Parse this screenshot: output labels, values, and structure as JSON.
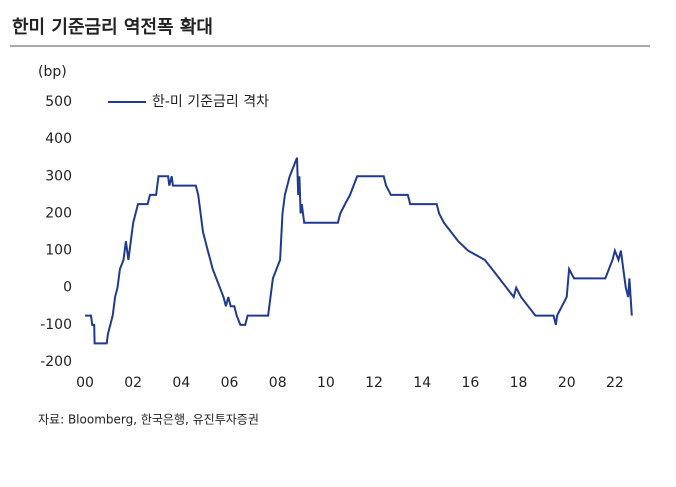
{
  "chart_data": {
    "type": "line",
    "title": "한미 기준금리 역전폭 확대",
    "y_unit": "(bp)",
    "source": "자료: Bloomberg, 한국은행, 유진투자증권",
    "series": [
      {
        "name": "한-미 기준금리 격차",
        "color": "#1f3a8f",
        "x": [
          2000.0,
          2000.25,
          2000.3,
          2000.38,
          2000.4,
          2000.9,
          2000.95,
          2001.05,
          2001.15,
          2001.25,
          2001.35,
          2001.45,
          2001.6,
          2001.7,
          2001.8,
          2001.9,
          2002.0,
          2002.1,
          2002.2,
          2002.6,
          2002.7,
          2002.95,
          2003.05,
          2003.45,
          2003.5,
          2003.6,
          2003.65,
          2004.6,
          2004.7,
          2004.8,
          2004.9,
          2005.0,
          2005.1,
          2005.2,
          2005.3,
          2005.45,
          2005.6,
          2005.75,
          2005.85,
          2005.95,
          2006.05,
          2006.2,
          2006.3,
          2006.45,
          2006.65,
          2006.75,
          2007.6,
          2007.7,
          2007.8,
          2007.95,
          2008.1,
          2008.2,
          2008.3,
          2008.4,
          2008.5,
          2008.65,
          2008.8,
          2008.85,
          2008.9,
          2008.95,
          2009.0,
          2009.1,
          2010.5,
          2010.6,
          2010.8,
          2011.0,
          2011.15,
          2011.3,
          2012.4,
          2012.5,
          2012.7,
          2013.4,
          2013.5,
          2014.6,
          2014.7,
          2014.9,
          2015.2,
          2015.5,
          2015.9,
          2016.6,
          2016.9,
          2017.2,
          2017.5,
          2017.8,
          2017.9,
          2018.1,
          2018.4,
          2018.7,
          2019.45,
          2019.55,
          2019.6,
          2019.8,
          2020.0,
          2020.1,
          2020.3,
          2021.6,
          2021.75,
          2021.9,
          2022.0,
          2022.15,
          2022.25,
          2022.35,
          2022.45,
          2022.55,
          2022.6,
          2022.7
        ],
        "values": [
          -75,
          -75,
          -100,
          -100,
          -150,
          -150,
          -125,
          -100,
          -75,
          -25,
          0,
          50,
          75,
          125,
          75,
          125,
          175,
          200,
          225,
          225,
          250,
          250,
          300,
          300,
          275,
          300,
          275,
          275,
          250,
          200,
          150,
          125,
          100,
          75,
          50,
          25,
          0,
          -25,
          -50,
          -25,
          -50,
          -50,
          -75,
          -100,
          -100,
          -75,
          -75,
          -25,
          25,
          50,
          75,
          200,
          250,
          275,
          300,
          325,
          350,
          250,
          300,
          200,
          225,
          175,
          175,
          200,
          225,
          250,
          275,
          300,
          300,
          275,
          250,
          250,
          225,
          225,
          200,
          175,
          150,
          125,
          100,
          75,
          50,
          25,
          0,
          -25,
          0,
          -25,
          -50,
          -75,
          -75,
          -100,
          -75,
          -50,
          -25,
          50,
          25,
          25,
          50,
          75,
          100,
          75,
          100,
          50,
          0,
          -25,
          25,
          -75
        ]
      }
    ],
    "xlim": [
      2000,
      2023
    ],
    "xticks": [
      {
        "value": 2000,
        "label": "00"
      },
      {
        "value": 2002,
        "label": "02"
      },
      {
        "value": 2004,
        "label": "04"
      },
      {
        "value": 2006,
        "label": "06"
      },
      {
        "value": 2008,
        "label": "08"
      },
      {
        "value": 2010,
        "label": "10"
      },
      {
        "value": 2012,
        "label": "12"
      },
      {
        "value": 2014,
        "label": "14"
      },
      {
        "value": 2016,
        "label": "16"
      },
      {
        "value": 2018,
        "label": "18"
      },
      {
        "value": 2020,
        "label": "20"
      },
      {
        "value": 2022,
        "label": "22"
      }
    ],
    "ylim": [
      -200,
      500
    ],
    "yticks": [
      -200,
      -100,
      0,
      100,
      200,
      300,
      400,
      500
    ],
    "legend": "top-left"
  }
}
